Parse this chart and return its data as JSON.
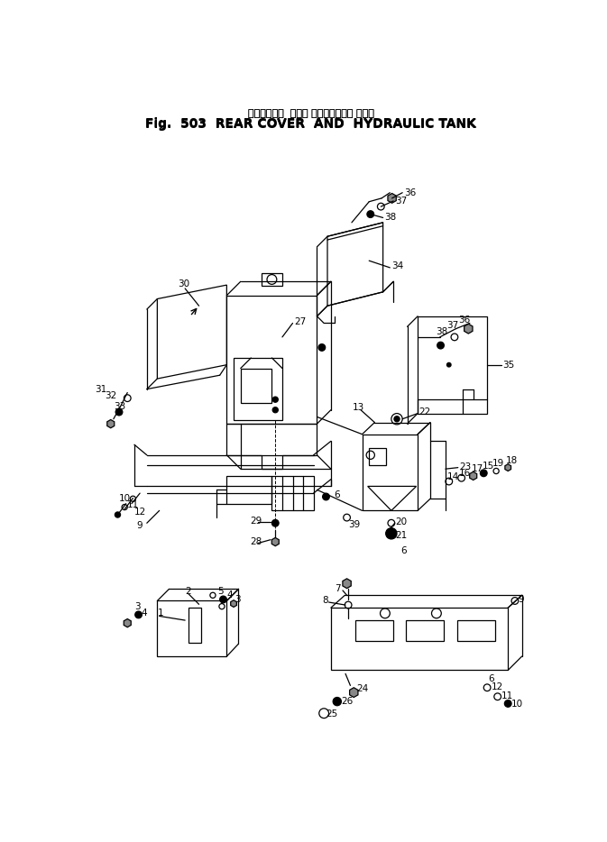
{
  "title_jp": "リヤーカバー  および ハイドロリック タンク",
  "title_en": "Fig.  503  REAR COVER  AND  HYDRAULIC TANK",
  "bg_color": "#ffffff",
  "lc": "#000000",
  "lw": 0.9,
  "fs": 7.5,
  "fig_w": 6.73,
  "fig_h": 9.34,
  "dpi": 100
}
